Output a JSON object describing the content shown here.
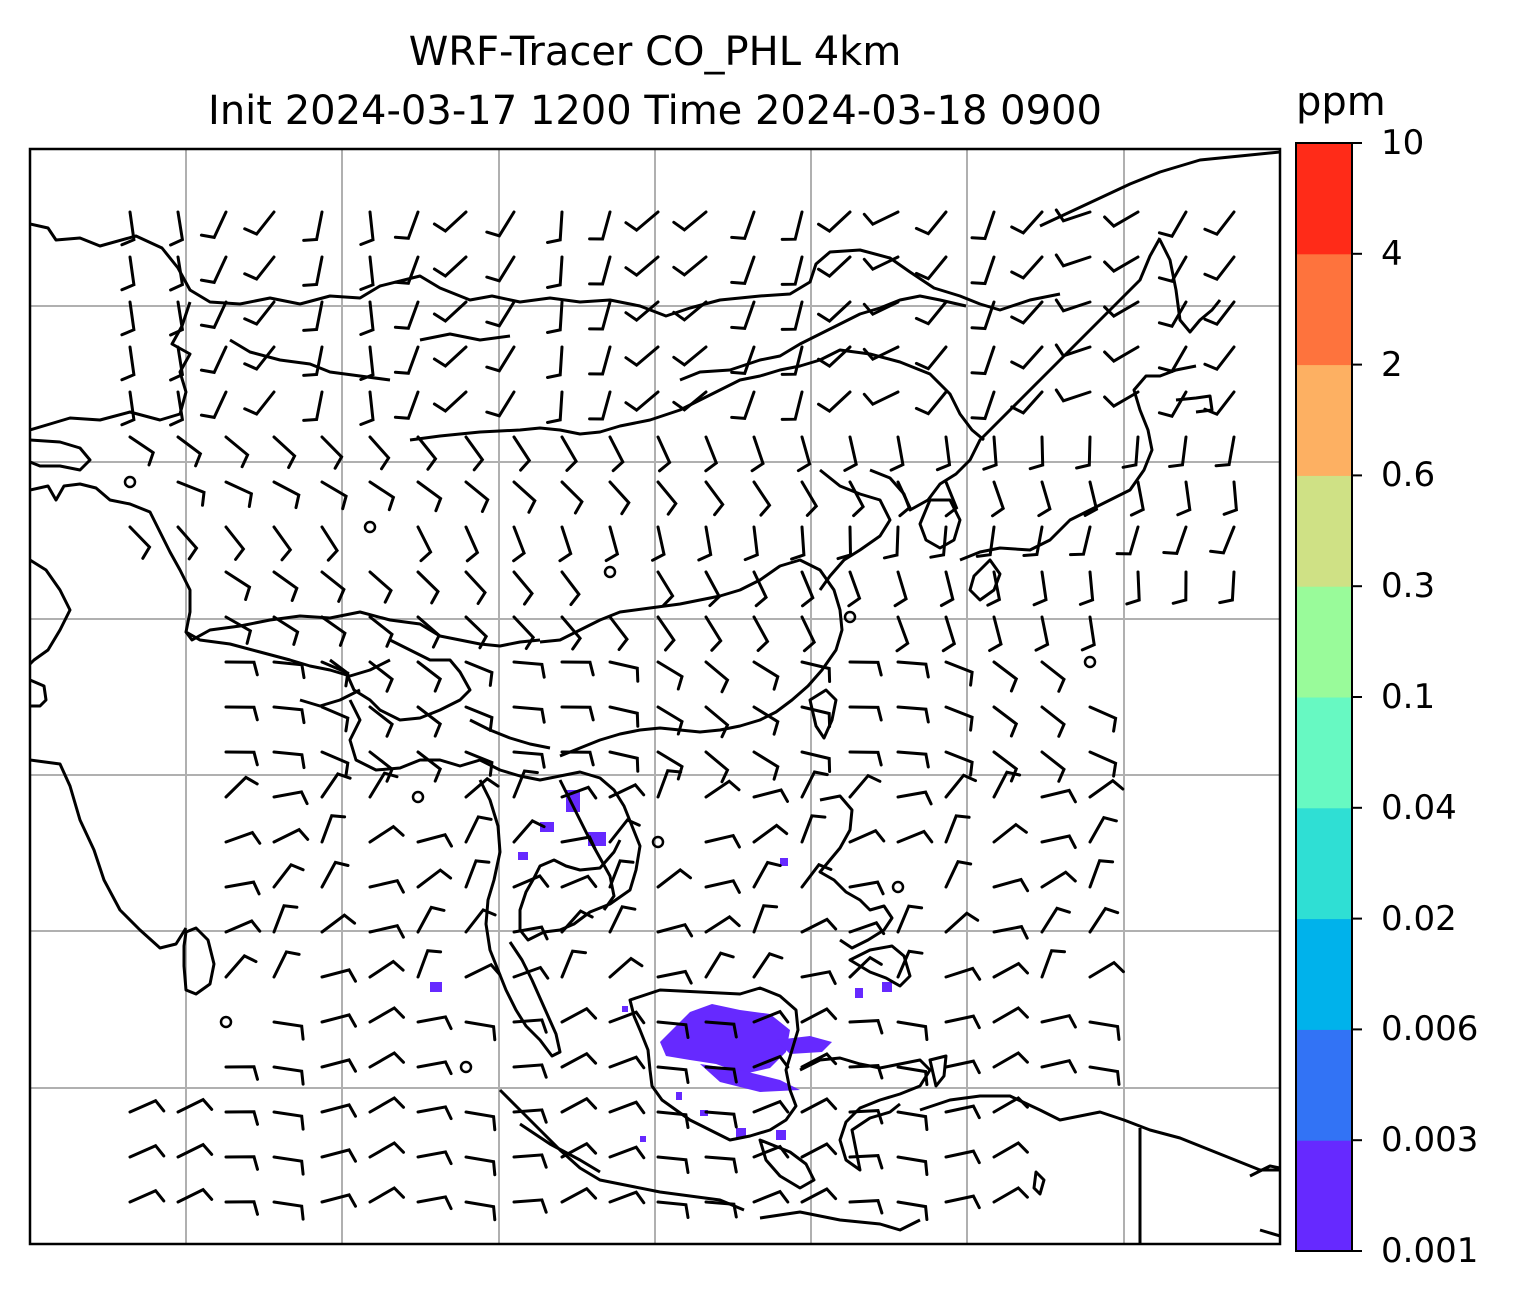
{
  "title": {
    "line1": "WRF-Tracer CO_PHL 4km",
    "line2": "Init 2024-03-17 1200 Time 2024-03-18 0900"
  },
  "colorbar": {
    "unit": "ppm",
    "levels": [
      "0.001",
      "0.003",
      "0.006",
      "0.02",
      "0.04",
      "0.1",
      "0.3",
      "0.6",
      "2",
      "4",
      "10"
    ],
    "colors": [
      "#6629FF",
      "#3273F5",
      "#00B2EB",
      "#2FDFD4",
      "#67F9C2",
      "#99FB9A",
      "#CFE185",
      "#FDB062",
      "#FE733D",
      "#FF2B18"
    ]
  },
  "map": {
    "gridlines": true,
    "coastline_color": "#000000",
    "gridline_color": "#b0b0b0",
    "tracer_plume_color": "#6629FF"
  }
}
